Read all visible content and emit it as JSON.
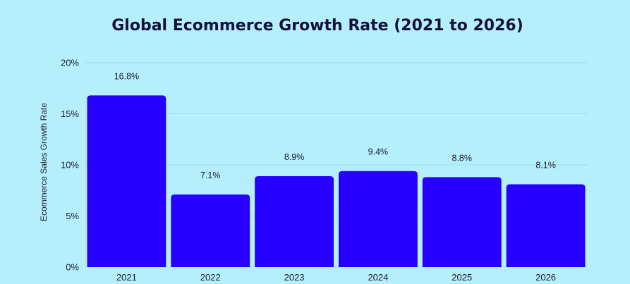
{
  "chart_data": {
    "type": "bar",
    "title": "Global Ecommerce Growth Rate (2021 to 2026)",
    "xlabel": "",
    "ylabel": "Ecommerce Sales Growth Rate",
    "categories": [
      "2021",
      "2022",
      "2023",
      "2024",
      "2025",
      "2026"
    ],
    "values": [
      16.8,
      7.1,
      8.9,
      9.4,
      8.8,
      8.1
    ],
    "value_labels": [
      "16.8%",
      "7.1%",
      "8.9%",
      "9.4%",
      "8.8%",
      "8.1%"
    ],
    "ylim": [
      0,
      20
    ],
    "yticks": [
      0,
      5,
      10,
      15,
      20
    ],
    "ytick_labels": [
      "0%",
      "5%",
      "10%",
      "15%",
      "20%"
    ],
    "grid": true,
    "legend": "none",
    "colors": {
      "background": "#b6effc",
      "bar": "#2800ff",
      "grid": "#9adbe8",
      "title": "#14123d",
      "text": "#1c1c2c"
    }
  }
}
